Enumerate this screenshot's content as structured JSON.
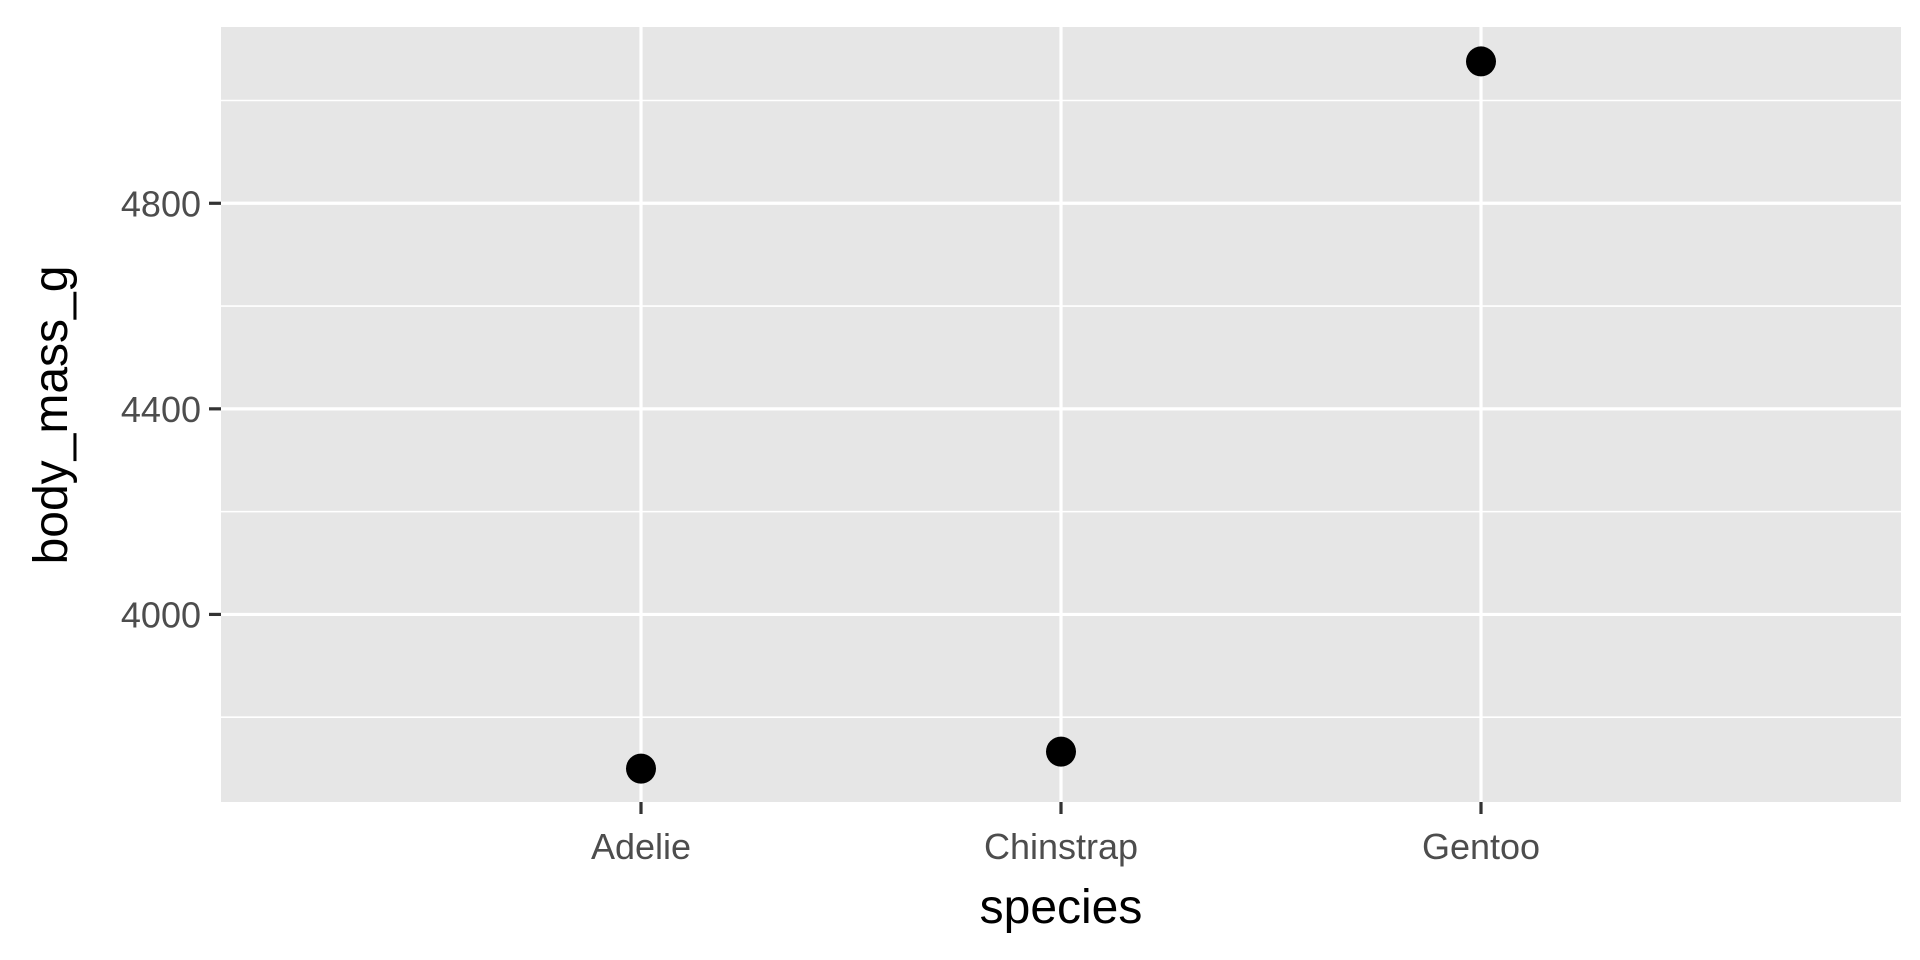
{
  "chart_data": {
    "type": "scatter",
    "title": "",
    "xlabel": "species",
    "ylabel": "body_mass_g",
    "categories": [
      "Adelie",
      "Chinstrap",
      "Gentoo"
    ],
    "values": [
      3700,
      3733,
      5076
    ],
    "ylim": [
      3635,
      5143
    ],
    "yticks": [
      4000,
      4400,
      4800
    ],
    "y_minor_ticks": [
      3800,
      4200,
      4600,
      5000
    ],
    "grid": true,
    "colors": {
      "panel": "#e6e6e6",
      "grid": "#ffffff",
      "point": "#000000",
      "tick": "#333333"
    }
  }
}
